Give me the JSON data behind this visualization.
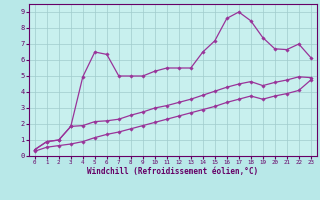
{
  "xlabel": "Windchill (Refroidissement éolien,°C)",
  "background_color": "#b8e8e8",
  "plot_bg_color": "#c8f0ee",
  "grid_color": "#a0cccc",
  "line_color": "#993399",
  "x_values": [
    0,
    1,
    2,
    3,
    4,
    5,
    6,
    7,
    8,
    9,
    10,
    11,
    12,
    13,
    14,
    15,
    16,
    17,
    18,
    19,
    20,
    21,
    22,
    23
  ],
  "line_main_y": [
    0.4,
    0.9,
    1.0,
    1.85,
    4.95,
    6.5,
    6.35,
    5.0,
    5.0,
    5.0,
    5.3,
    5.5,
    5.5,
    5.5,
    6.5,
    7.2,
    8.6,
    9.0,
    8.45,
    7.4,
    6.7,
    6.65,
    7.0,
    6.15
  ],
  "line_upper_y": [
    0.4,
    0.9,
    1.0,
    1.85,
    1.9,
    2.15,
    2.2,
    2.3,
    2.55,
    2.75,
    3.0,
    3.15,
    3.35,
    3.55,
    3.8,
    4.05,
    4.3,
    4.5,
    4.65,
    4.4,
    4.6,
    4.75,
    4.95,
    4.9
  ],
  "line_lower_y": [
    0.3,
    0.55,
    0.65,
    0.75,
    0.9,
    1.15,
    1.35,
    1.5,
    1.7,
    1.9,
    2.1,
    2.3,
    2.5,
    2.7,
    2.9,
    3.1,
    3.35,
    3.55,
    3.75,
    3.55,
    3.75,
    3.9,
    4.1,
    4.75
  ],
  "xlim": [
    -0.5,
    23.5
  ],
  "ylim": [
    0,
    9.5
  ],
  "yticks": [
    0,
    1,
    2,
    3,
    4,
    5,
    6,
    7,
    8,
    9
  ],
  "xticks": [
    0,
    1,
    2,
    3,
    4,
    5,
    6,
    7,
    8,
    9,
    10,
    11,
    12,
    13,
    14,
    15,
    16,
    17,
    18,
    19,
    20,
    21,
    22,
    23
  ]
}
